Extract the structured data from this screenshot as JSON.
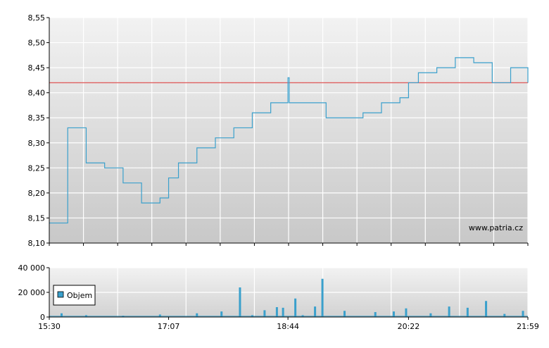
{
  "chart_data": [
    {
      "type": "line",
      "panel": "price",
      "ylim": [
        8.1,
        8.55
      ],
      "y_ticks": [
        "8,10",
        "8,15",
        "8,20",
        "8,25",
        "8,30",
        "8,35",
        "8,40",
        "8,45",
        "8,50",
        "8,55"
      ],
      "reference_line": 8.42,
      "watermark": "www.patria.cz",
      "grid": true,
      "colors": {
        "line": "#3aa0cc",
        "reference": "#e06060"
      },
      "x": [
        "15:30",
        "15:45",
        "16:00",
        "16:15",
        "16:30",
        "16:45",
        "17:00",
        "17:07",
        "17:15",
        "17:30",
        "17:45",
        "18:00",
        "18:15",
        "18:30",
        "18:44",
        "18:45",
        "19:00",
        "19:15",
        "19:30",
        "19:45",
        "20:00",
        "20:15",
        "20:22",
        "20:30",
        "20:45",
        "21:00",
        "21:15",
        "21:30",
        "21:45",
        "21:59"
      ],
      "values": [
        8.14,
        8.33,
        8.26,
        8.25,
        8.22,
        8.18,
        8.19,
        8.23,
        8.26,
        8.29,
        8.31,
        8.33,
        8.36,
        8.38,
        8.43,
        8.38,
        8.38,
        8.35,
        8.35,
        8.36,
        8.38,
        8.39,
        8.42,
        8.44,
        8.45,
        8.47,
        8.46,
        8.42,
        8.45,
        8.42
      ]
    },
    {
      "type": "bar",
      "panel": "volume",
      "ylim": [
        0,
        40000
      ],
      "y_ticks": [
        "0",
        "20 000",
        "40 000"
      ],
      "x_ticks": [
        "15:30",
        "17:07",
        "18:44",
        "20:22",
        "21:59"
      ],
      "legend": [
        "Objem"
      ],
      "grid": true,
      "colors": {
        "bar": "#3aa0cc"
      },
      "x": [
        "15:40",
        "16:00",
        "16:30",
        "17:00",
        "17:30",
        "17:50",
        "18:05",
        "18:15",
        "18:25",
        "18:35",
        "18:40",
        "18:50",
        "18:56",
        "19:06",
        "19:12",
        "19:30",
        "19:55",
        "20:10",
        "20:20",
        "20:40",
        "20:55",
        "21:10",
        "21:25",
        "21:40",
        "21:55"
      ],
      "values": [
        3000,
        1500,
        1000,
        2000,
        3000,
        4500,
        24000,
        1500,
        5500,
        8000,
        7500,
        15000,
        1500,
        8500,
        31000,
        5000,
        4000,
        4500,
        7000,
        3000,
        8500,
        7500,
        13000,
        2500,
        5000
      ]
    }
  ]
}
